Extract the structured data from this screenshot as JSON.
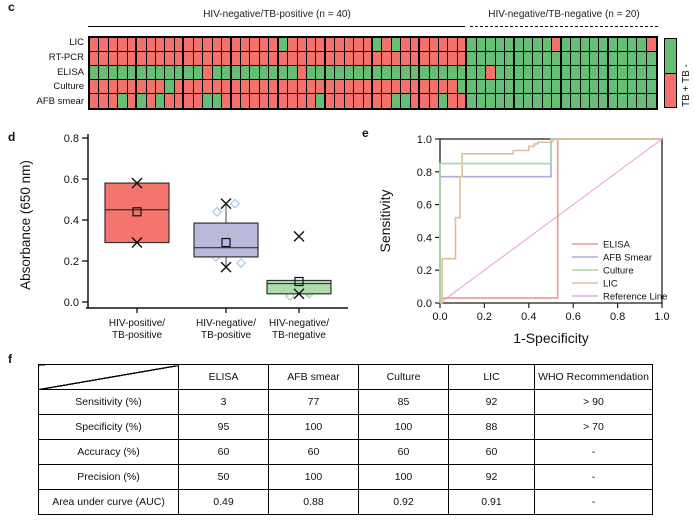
{
  "chart_data": [
    {
      "type": "heatmap",
      "panel_label": "c",
      "group1": {
        "title": "HIV-negative/TB-positive (n = 40)",
        "n": 40,
        "underline": "solid",
        "columns": 40
      },
      "group2": {
        "title": "HIV-negative/TB-negative (n = 20)",
        "n": 20,
        "underline": "dashed",
        "columns": 20
      },
      "rows": [
        "LIC",
        "RT-PCR",
        "ELISA",
        "Culture",
        "AFB smear"
      ],
      "cell_colors": {
        "P": "#F3726B",
        "N": "#66BE76"
      },
      "cell_meaning": {
        "P": "TB +",
        "N": "TB -"
      },
      "cells": {
        "LIC": "PPPPPPPPPPPPPPPPPPPPNPPPPPPPPPNPNPPPPPPPNNNNNNNNNPNNNNNNNNNP",
        "RT-PCR": "PPPPPPPPPPPPPPPPPPPPPPPPPPPPPPPPPPPPPPPPNNNNNNNNNNNNNNNNNNNN",
        "ELISA": "NNNNNNNNNNNNPNNNNNNNNNPNNNNNNNNNNNNNNNNNNNPNNNNNNNNNNNNNNNNN",
        "Culture": "PPPPPPPPNPPPPPPPPPPPPPPPPPPPPPPPPPPPPPPNNNNNNNNNNNNNNNNNNNNN",
        "AFB smear": "PPPNPNPNPPPPNNPPPPPPPPPPNPPPPPPPNNPPPNPPNNNNNNNNNNNNNNNNNNNN"
      },
      "legend": {
        "rotated_text": "TB +  TB -",
        "top_color_label": "TB -",
        "bottom_color_label": "TB +"
      }
    },
    {
      "type": "box",
      "panel_label": "d",
      "ylabel": "Absorbance (650 nm)",
      "ylim": [
        0.0,
        0.8
      ],
      "yticks": [
        "0.0",
        "0.2",
        "0.4",
        "0.6",
        "0.8"
      ],
      "groups": [
        {
          "label_lines": [
            "HIV-positive/",
            "TB-positive"
          ],
          "color": "#F4756D",
          "q1": 0.29,
          "q3": 0.58,
          "median": 0.45,
          "mean": 0.44,
          "whisker_low": null,
          "whisker_high": null,
          "x_markers": [
            0.58,
            0.29
          ],
          "scatter": [],
          "scatter_color": "#A9C4E4"
        },
        {
          "label_lines": [
            "HIV-negative/",
            "TB-positive"
          ],
          "color": "#B9B9DB",
          "q1": 0.22,
          "q3": 0.385,
          "median": 0.265,
          "mean": 0.29,
          "whisker_low": 0.17,
          "whisker_high": 0.48,
          "x_markers": [
            0.48,
            0.17
          ],
          "scatter": [
            0.48,
            0.44,
            0.24,
            0.22,
            0.19
          ],
          "scatter_color": "#A9C4E4"
        },
        {
          "label_lines": [
            "HIV-negative/",
            "TB-negative"
          ],
          "color": "#AEDBAE",
          "q1": 0.04,
          "q3": 0.105,
          "median": 0.09,
          "mean": 0.1,
          "whisker_low": null,
          "whisker_high": null,
          "x_markers": [
            0.32,
            0.04
          ],
          "scatter": [
            0.05,
            0.03,
            0.04
          ],
          "scatter_color": "#9FD4A0"
        }
      ]
    },
    {
      "type": "line",
      "panel_label": "e",
      "xlabel": "1-Specificity",
      "ylabel": "Sensitivity",
      "xlim": [
        0.0,
        1.0
      ],
      "ylim": [
        0.0,
        1.0
      ],
      "xticks": [
        "0.0",
        "0.2",
        "0.4",
        "0.6",
        "0.8",
        "1.0"
      ],
      "yticks": [
        "0.0",
        "0.2",
        "0.4",
        "0.6",
        "0.8",
        "1.0"
      ],
      "legend_position": "inside-right-bottom",
      "series": [
        {
          "name": "ELISA",
          "color": "#E69C96",
          "points": [
            [
              0,
              0
            ],
            [
              0,
              0.03
            ],
            [
              0.53,
              0.03
            ],
            [
              0.53,
              1
            ],
            [
              1,
              1
            ]
          ]
        },
        {
          "name": "AFB Smear",
          "color": "#A9AEDC",
          "points": [
            [
              0,
              0
            ],
            [
              0,
              0.77
            ],
            [
              0.5,
              0.77
            ],
            [
              0.5,
              1
            ],
            [
              1,
              1
            ]
          ]
        },
        {
          "name": "Culture",
          "color": "#A6D7A8",
          "points": [
            [
              0,
              0
            ],
            [
              0,
              0.85
            ],
            [
              0.5,
              0.85
            ],
            [
              0.5,
              1
            ],
            [
              1,
              1
            ]
          ]
        },
        {
          "name": "LIC",
          "color": "#DDBF9D",
          "points": [
            [
              0,
              0
            ],
            [
              0.01,
              0
            ],
            [
              0.01,
              0.27
            ],
            [
              0.07,
              0.27
            ],
            [
              0.07,
              0.52
            ],
            [
              0.09,
              0.52
            ],
            [
              0.09,
              0.77
            ],
            [
              0.1,
              0.77
            ],
            [
              0.1,
              0.91
            ],
            [
              0.33,
              0.91
            ],
            [
              0.33,
              0.93
            ],
            [
              0.4,
              0.93
            ],
            [
              0.4,
              0.955
            ],
            [
              0.425,
              0.955
            ],
            [
              0.425,
              0.97
            ],
            [
              0.44,
              0.97
            ],
            [
              0.44,
              0.98
            ],
            [
              0.5,
              0.98
            ],
            [
              0.52,
              1
            ],
            [
              1,
              1
            ]
          ]
        },
        {
          "name": "Reference Line",
          "color": "#E9A8E0",
          "points": [
            [
              0,
              0
            ],
            [
              1,
              1
            ]
          ]
        }
      ]
    },
    {
      "type": "table",
      "panel_label": "f",
      "columns": [
        "",
        "ELISA",
        "AFB smear",
        "Culture",
        "LIC",
        "WHO Recommendation"
      ],
      "rows": [
        [
          "Sensitivity (%)",
          "3",
          "77",
          "85",
          "92",
          "> 90"
        ],
        [
          "Specificity (%)",
          "95",
          "100",
          "100",
          "88",
          "> 70"
        ],
        [
          "Accuracy (%)",
          "60",
          "60",
          "60",
          "60",
          "-"
        ],
        [
          "Precision (%)",
          "50",
          "100",
          "100",
          "92",
          "-"
        ],
        [
          "Area under curve (AUC)",
          "0.49",
          "0.88",
          "0.92",
          "0.91",
          "-"
        ]
      ]
    }
  ]
}
